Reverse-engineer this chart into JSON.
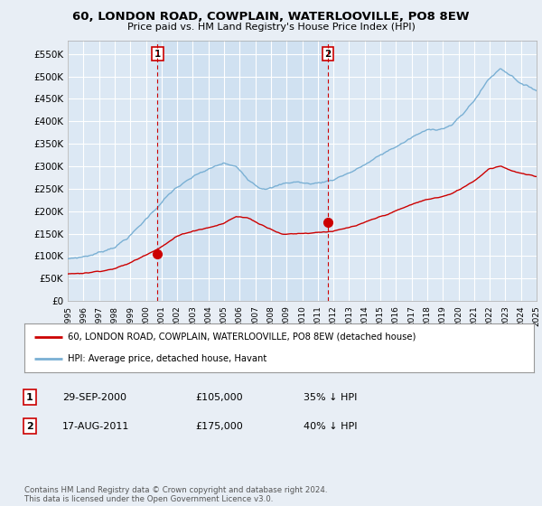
{
  "title": "60, LONDON ROAD, COWPLAIN, WATERLOOVILLE, PO8 8EW",
  "subtitle": "Price paid vs. HM Land Registry's House Price Index (HPI)",
  "ylabel_ticks": [
    "£0",
    "£50K",
    "£100K",
    "£150K",
    "£200K",
    "£250K",
    "£300K",
    "£350K",
    "£400K",
    "£450K",
    "£500K",
    "£550K"
  ],
  "ytick_values": [
    0,
    50000,
    100000,
    150000,
    200000,
    250000,
    300000,
    350000,
    400000,
    450000,
    500000,
    550000
  ],
  "ylim": [
    0,
    580000
  ],
  "background_color": "#e8eef5",
  "plot_background": "#dce8f4",
  "grid_color": "#c8d8e8",
  "red_line_color": "#cc0000",
  "blue_line_color": "#7ab0d4",
  "ann1_x": 2000.75,
  "ann1_y": 105000,
  "ann2_x": 2011.65,
  "ann2_y": 175000,
  "xmin": 1995,
  "xmax": 2025,
  "legend_label_red": "60, LONDON ROAD, COWPLAIN, WATERLOOVILLE, PO8 8EW (detached house)",
  "legend_label_blue": "HPI: Average price, detached house, Havant",
  "annotation1_label": "1",
  "annotation1_date": "29-SEP-2000",
  "annotation1_price": "£105,000",
  "annotation1_hpi": "35% ↓ HPI",
  "annotation2_label": "2",
  "annotation2_date": "17-AUG-2011",
  "annotation2_price": "£175,000",
  "annotation2_hpi": "40% ↓ HPI",
  "footer": "Contains HM Land Registry data © Crown copyright and database right 2024.\nThis data is licensed under the Open Government Licence v3.0."
}
